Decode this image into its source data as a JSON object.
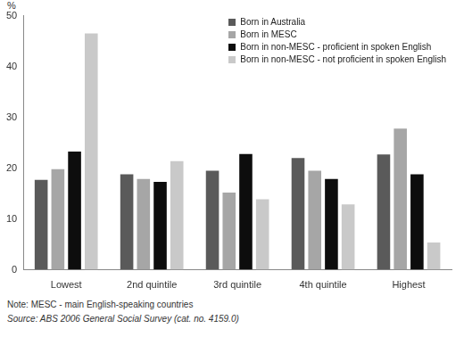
{
  "chart_data": {
    "type": "bar",
    "y_label": "%",
    "categories": [
      "Lowest",
      "2nd quintile",
      "3rd quintile",
      "4th quintile",
      "Highest"
    ],
    "series": [
      {
        "name": "Born in Australia",
        "color": "#5a5a5a",
        "values": [
          17.7,
          18.8,
          19.5,
          22.0,
          22.7
        ]
      },
      {
        "name": "Born in MESC",
        "color": "#a6a6a6",
        "values": [
          19.8,
          17.9,
          15.2,
          19.5,
          27.8
        ]
      },
      {
        "name": "Born in non-MESC - proficient in spoken English",
        "color": "#0d0d0d",
        "values": [
          23.3,
          17.3,
          22.8,
          17.9,
          18.8
        ]
      },
      {
        "name": "Born in non-MESC - not proficient in spoken English",
        "color": "#c9c9c9",
        "values": [
          46.5,
          21.4,
          13.9,
          12.9,
          5.4
        ]
      }
    ],
    "ylim": [
      0,
      50
    ],
    "yticks": [
      0,
      10,
      20,
      30,
      40,
      50
    ],
    "grid": true,
    "legend": "top-right",
    "notes": [
      "Note: MESC - main English-speaking countries",
      "Source: ABS 2006 General Social Survey (cat. no. 4159.0)"
    ]
  }
}
